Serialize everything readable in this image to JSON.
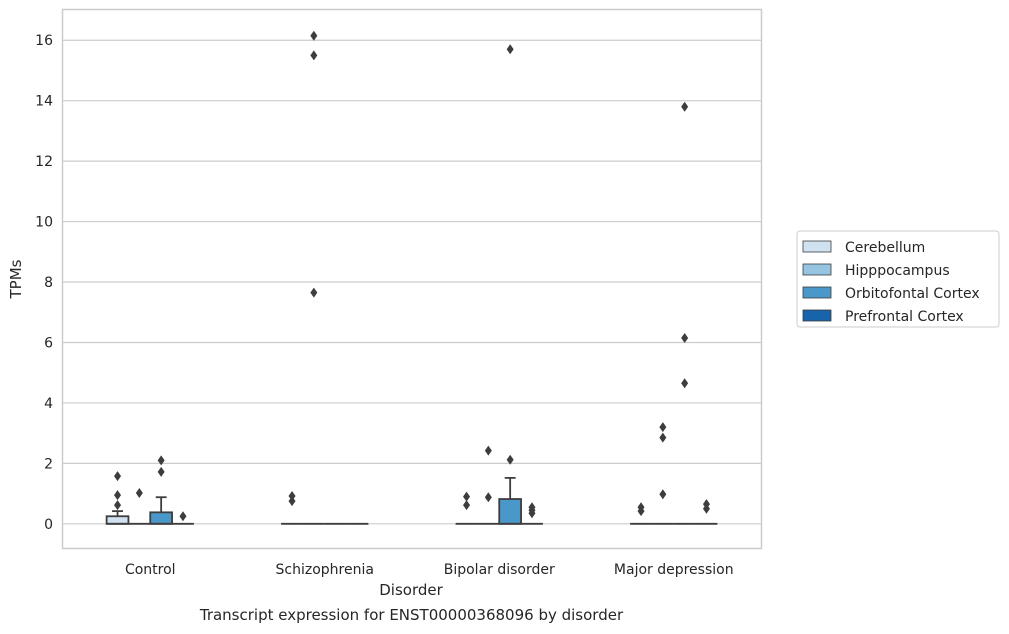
{
  "caption": "Transcript expression for ENST00000368096 by disorder",
  "chart_data": {
    "type": "box",
    "xlabel": "Disorder",
    "ylabel": "TPMs",
    "ylim": [
      -0.8,
      17
    ],
    "yticks": [
      0,
      2,
      4,
      6,
      8,
      10,
      12,
      14,
      16
    ],
    "grid": true,
    "legend_position": "right",
    "categories": [
      "Control",
      "Schizophrenia",
      "Bipolar disorder",
      "Major depression"
    ],
    "series": [
      {
        "name": "Cerebellum",
        "color": "#d0e1f2",
        "boxes": [
          {
            "q1": 0,
            "median": 0,
            "q3": 0.25,
            "whisker_low": 0,
            "whisker_high": 0.42,
            "outliers": [
              0.62,
              0.95,
              1.58
            ]
          },
          {
            "q1": 0,
            "median": 0,
            "q3": 0,
            "whisker_low": 0,
            "whisker_high": 0,
            "outliers": [
              0.75,
              0.92
            ]
          },
          {
            "q1": 0,
            "median": 0,
            "q3": 0,
            "whisker_low": 0,
            "whisker_high": 0,
            "outliers": [
              0.62,
              0.9
            ]
          },
          {
            "q1": 0,
            "median": 0,
            "q3": 0,
            "whisker_low": 0,
            "whisker_high": 0,
            "outliers": [
              0.42,
              0.55
            ]
          }
        ]
      },
      {
        "name": "Hipppocampus",
        "color": "#94c4df",
        "boxes": [
          {
            "q1": 0,
            "median": 0,
            "q3": 0,
            "whisker_low": 0,
            "whisker_high": 0,
            "outliers": [
              1.02
            ]
          },
          {
            "q1": 0,
            "median": 0,
            "q3": 0,
            "whisker_low": 0,
            "whisker_high": 0,
            "outliers": [
              7.65,
              15.5,
              16.15
            ]
          },
          {
            "q1": 0,
            "median": 0,
            "q3": 0,
            "whisker_low": 0,
            "whisker_high": 0,
            "outliers": [
              0.88,
              2.42
            ]
          },
          {
            "q1": 0,
            "median": 0,
            "q3": 0,
            "whisker_low": 0,
            "whisker_high": 0,
            "outliers": [
              0.98,
              2.85,
              3.2
            ]
          }
        ]
      },
      {
        "name": "Orbitofontal Cortex",
        "color": "#4a98c9",
        "boxes": [
          {
            "q1": 0,
            "median": 0,
            "q3": 0.38,
            "whisker_low": 0,
            "whisker_high": 0.88,
            "outliers": [
              1.72,
              2.1
            ]
          },
          {
            "q1": 0,
            "median": 0,
            "q3": 0,
            "whisker_low": 0,
            "whisker_high": 0,
            "outliers": []
          },
          {
            "q1": 0,
            "median": 0,
            "q3": 0.82,
            "whisker_low": 0,
            "whisker_high": 1.52,
            "outliers": [
              2.12,
              15.7
            ]
          },
          {
            "q1": 0,
            "median": 0,
            "q3": 0,
            "whisker_low": 0,
            "whisker_high": 0,
            "outliers": [
              4.65,
              6.15,
              13.8
            ]
          }
        ]
      },
      {
        "name": "Prefrontal Cortex",
        "color": "#1764ab",
        "boxes": [
          {
            "q1": 0,
            "median": 0,
            "q3": 0,
            "whisker_low": 0,
            "whisker_high": 0,
            "outliers": [
              0.25
            ]
          },
          {
            "q1": 0,
            "median": 0,
            "q3": 0,
            "whisker_low": 0,
            "whisker_high": 0,
            "outliers": []
          },
          {
            "q1": 0,
            "median": 0,
            "q3": 0,
            "whisker_low": 0,
            "whisker_high": 0,
            "outliers": [
              0.35,
              0.45,
              0.55
            ]
          },
          {
            "q1": 0,
            "median": 0,
            "q3": 0,
            "whisker_low": 0,
            "whisker_high": 0,
            "outliers": [
              0.5,
              0.65
            ]
          }
        ]
      }
    ]
  }
}
